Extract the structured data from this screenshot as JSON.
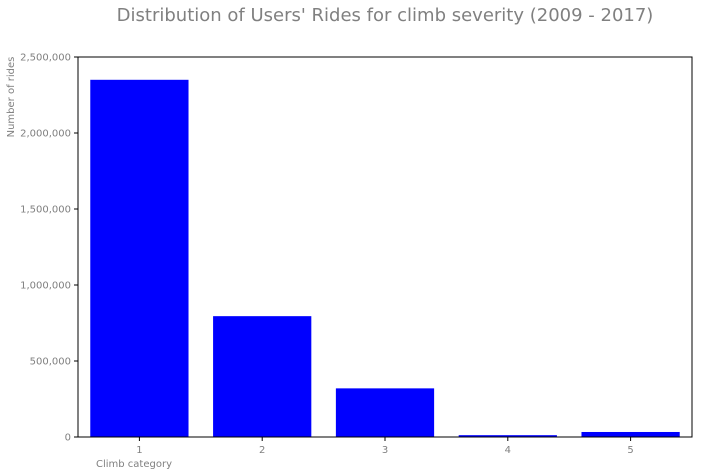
{
  "chart_data": {
    "type": "bar",
    "title": "Distribution of Users' Rides for climb severity (2009 - 2017)",
    "xlabel": "Climb category",
    "ylabel": "Number of rides",
    "categories": [
      "1",
      "2",
      "3",
      "4",
      "5"
    ],
    "values": [
      2350000,
      795000,
      320000,
      12000,
      33000
    ],
    "ylim": [
      0,
      2500000
    ],
    "yticks": [
      0,
      500000,
      1000000,
      1500000,
      2000000,
      2500000
    ],
    "ytick_labels": [
      "0",
      "500,000",
      "1,000,000",
      "1,500,000",
      "2,000,000",
      "2,500,000"
    ],
    "grid": false,
    "bar_color": "#0000ff",
    "text_color": "#808080"
  }
}
